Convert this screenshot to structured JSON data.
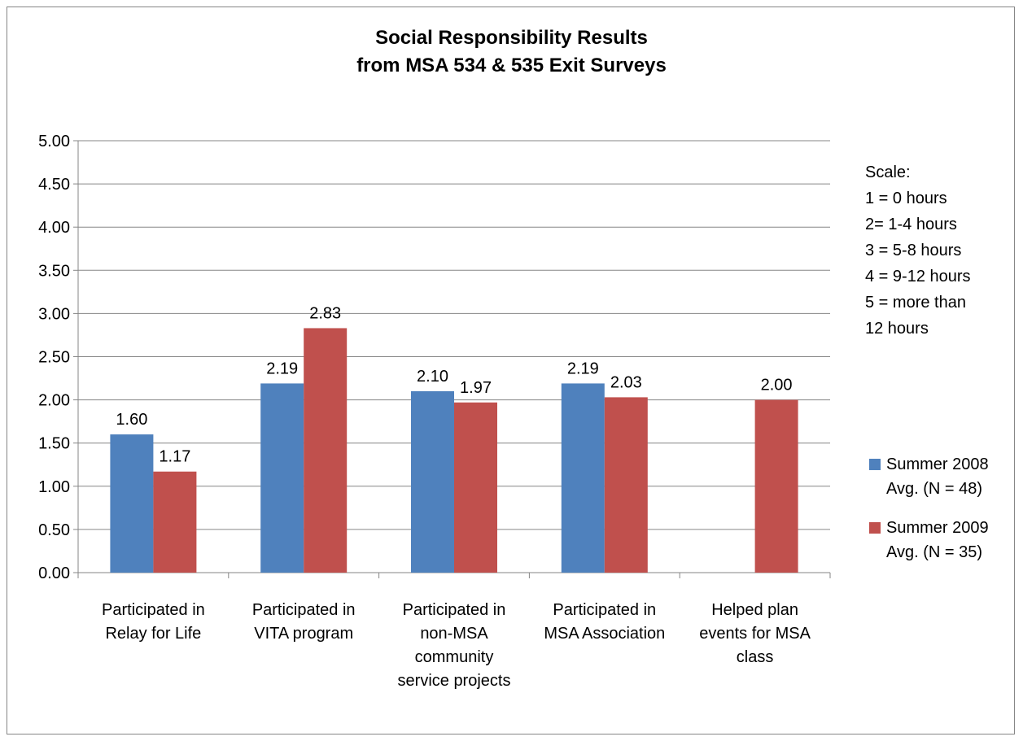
{
  "chart_data": {
    "type": "bar",
    "title_lines": [
      "Social Responsibility Results",
      "from MSA 534 & 535 Exit Surveys"
    ],
    "categories": [
      [
        "Participated in",
        "Relay for Life"
      ],
      [
        "Participated in",
        "VITA program"
      ],
      [
        "Participated in",
        "non-MSA",
        "community",
        "service projects"
      ],
      [
        "Participated in",
        "MSA Association"
      ],
      [
        "Helped plan",
        "events for MSA",
        "class"
      ]
    ],
    "series": [
      {
        "name_lines": [
          "Summer 2008",
          "Avg. (N = 48)"
        ],
        "color": "#4F81BD",
        "values": [
          1.6,
          2.19,
          2.1,
          2.19,
          null
        ],
        "labels": [
          "1.60",
          "2.19",
          "2.10",
          "2.19",
          ""
        ]
      },
      {
        "name_lines": [
          "Summer 2009",
          "Avg. (N = 35)"
        ],
        "color": "#C0504D",
        "values": [
          1.17,
          2.83,
          1.97,
          2.03,
          2.0
        ],
        "labels": [
          "1.17",
          "2.83",
          "1.97",
          "2.03",
          "2.00"
        ]
      }
    ],
    "ylim": [
      0,
      5
    ],
    "yticks": [
      "0.00",
      "0.50",
      "1.00",
      "1.50",
      "2.00",
      "2.50",
      "3.00",
      "3.50",
      "4.00",
      "4.50",
      "5.00"
    ],
    "grid": true,
    "legend_position": "right",
    "scale_note": [
      "Scale:",
      "1 = 0 hours",
      "2= 1-4 hours",
      "3 = 5-8 hours",
      "4 = 9-12 hours",
      "5 = more than",
      "12 hours"
    ]
  }
}
